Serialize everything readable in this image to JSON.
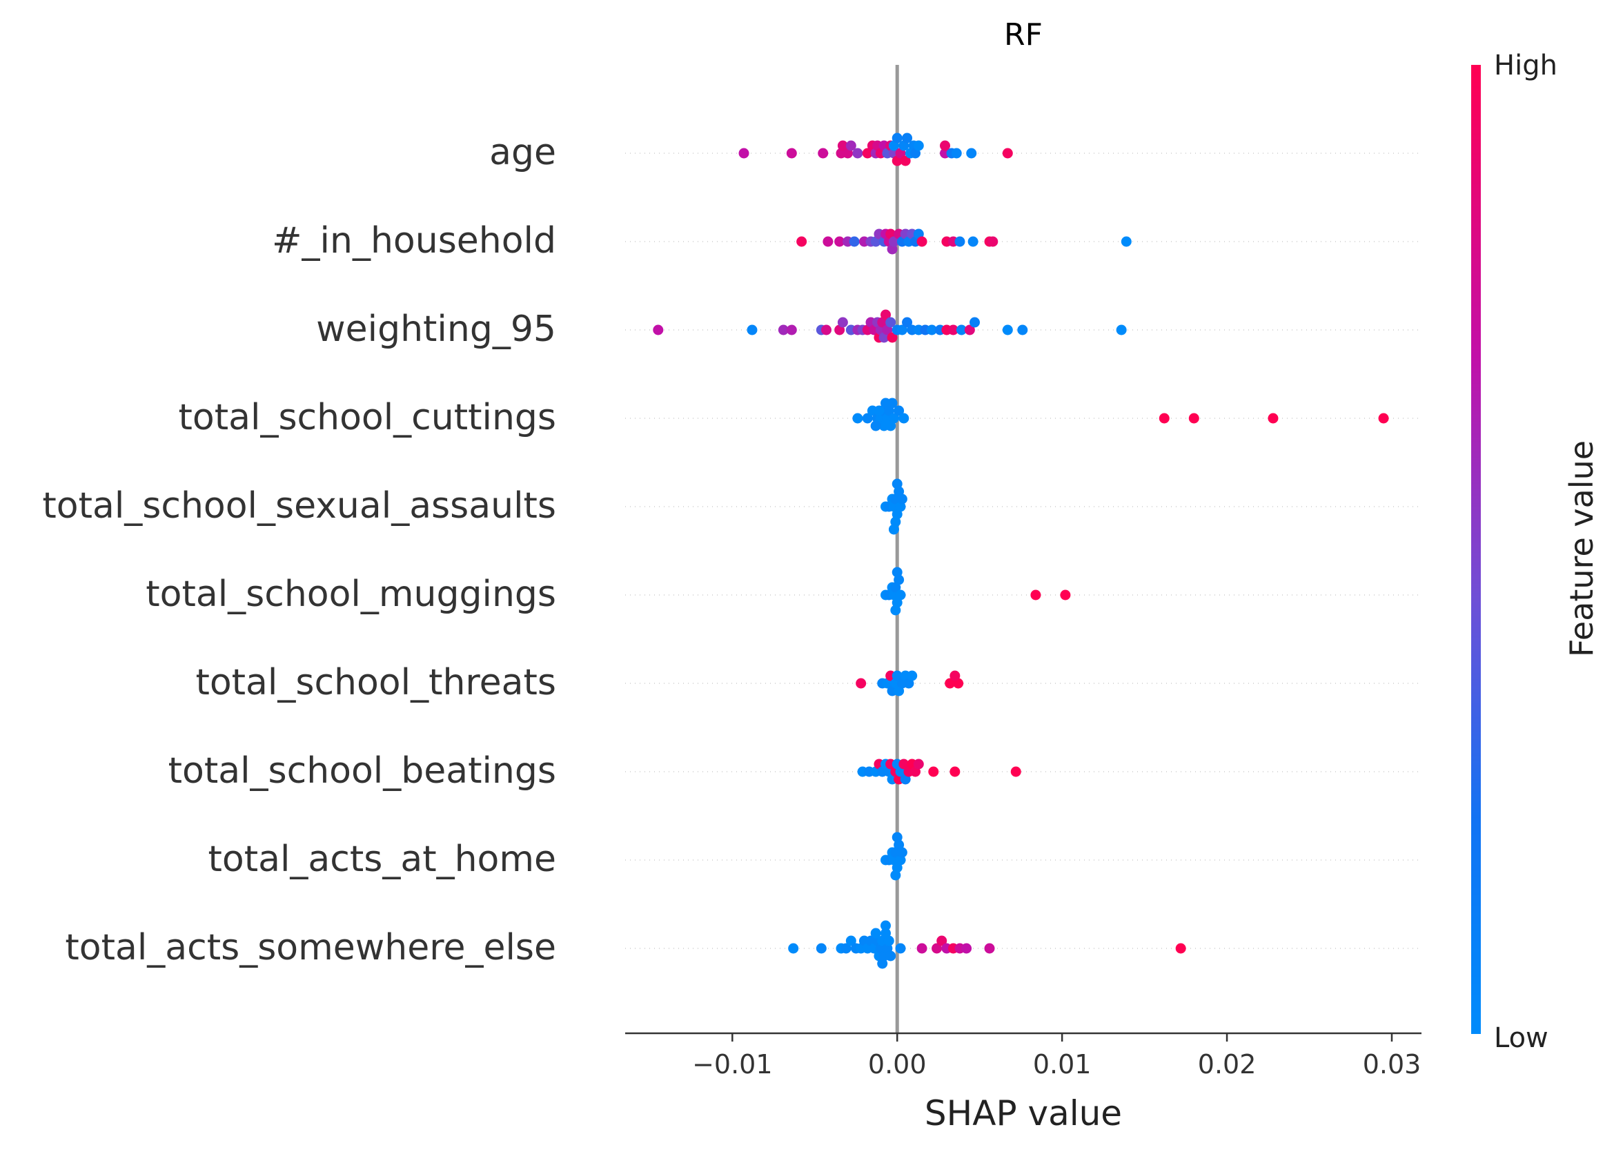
{
  "chart_data": {
    "type": "scatter",
    "title": "RF",
    "xlabel": "SHAP value",
    "ylabel": "",
    "xlim": [
      -0.0165,
      0.0318
    ],
    "x_ticks": [
      -0.01,
      0.0,
      0.01,
      0.02,
      0.03
    ],
    "x_tick_labels": [
      "−0.01",
      "0.00",
      "0.01",
      "0.02",
      "0.03"
    ],
    "grid": false,
    "zero_line": true,
    "colorbar": {
      "label": "Feature value",
      "high_label": "High",
      "low_label": "Low",
      "low_color": "#008bfb",
      "high_color": "#ff0052"
    },
    "features": [
      {
        "name": "age",
        "points": [
          {
            "x": -0.0093,
            "v": 0.7
          },
          {
            "x": -0.0064,
            "v": 0.75
          },
          {
            "x": -0.0045,
            "v": 0.75
          },
          {
            "x": -0.0034,
            "v": 0.8
          },
          {
            "x": -0.003,
            "v": 0.8
          },
          {
            "x": -0.0033,
            "v": 0.85
          },
          {
            "x": -0.0028,
            "v": 0.6
          },
          {
            "x": -0.0024,
            "v": 0.55
          },
          {
            "x": -0.0018,
            "v": 0.95
          },
          {
            "x": -0.0015,
            "v": 0.9
          },
          {
            "x": -0.0013,
            "v": 0.6
          },
          {
            "x": -0.0012,
            "v": 0.8
          },
          {
            "x": -0.001,
            "v": 0.9
          },
          {
            "x": -0.0008,
            "v": 0.7
          },
          {
            "x": -0.0006,
            "v": 0.4
          },
          {
            "x": -0.0004,
            "v": 0.85
          },
          {
            "x": -0.0002,
            "v": 0.5
          },
          {
            "x": -0.0002,
            "v": 0.0
          },
          {
            "x": 0.0,
            "v": 0.95
          },
          {
            "x": 0.0,
            "v": 0.1
          },
          {
            "x": 0.0002,
            "v": 0.8
          },
          {
            "x": 0.0004,
            "v": 0.05
          },
          {
            "x": 0.0005,
            "v": 0.95
          },
          {
            "x": 0.0006,
            "v": 0.1
          },
          {
            "x": 0.0008,
            "v": 0.0
          },
          {
            "x": 0.001,
            "v": 0.05
          },
          {
            "x": 0.0011,
            "v": 0.1
          },
          {
            "x": 0.0013,
            "v": 0.0
          },
          {
            "x": 0.0029,
            "v": 0.7
          },
          {
            "x": 0.0033,
            "v": 0.15
          },
          {
            "x": 0.0036,
            "v": 0.05
          },
          {
            "x": 0.0045,
            "v": 0.05
          },
          {
            "x": 0.0067,
            "v": 0.95
          },
          {
            "x": 0.0029,
            "v": 0.9
          }
        ]
      },
      {
        "name": "#_in_household",
        "points": [
          {
            "x": -0.0058,
            "v": 0.95
          },
          {
            "x": -0.0042,
            "v": 0.75
          },
          {
            "x": -0.0035,
            "v": 0.75
          },
          {
            "x": -0.003,
            "v": 0.6
          },
          {
            "x": -0.0026,
            "v": 0.3
          },
          {
            "x": -0.002,
            "v": 0.65
          },
          {
            "x": -0.0016,
            "v": 0.5
          },
          {
            "x": -0.0013,
            "v": 0.4
          },
          {
            "x": -0.0011,
            "v": 0.55
          },
          {
            "x": -0.0008,
            "v": 0.35
          },
          {
            "x": -0.0007,
            "v": 0.7
          },
          {
            "x": -0.0005,
            "v": 0.75
          },
          {
            "x": -0.0004,
            "v": 0.9
          },
          {
            "x": -0.0003,
            "v": 0.6
          },
          {
            "x": -0.0002,
            "v": 0.55
          },
          {
            "x": 0.0001,
            "v": 0.8
          },
          {
            "x": 0.0003,
            "v": 0.2
          },
          {
            "x": 0.0005,
            "v": 0.5
          },
          {
            "x": 0.0007,
            "v": 0.1
          },
          {
            "x": 0.0009,
            "v": 0.45
          },
          {
            "x": 0.0011,
            "v": 0.2
          },
          {
            "x": 0.0013,
            "v": 0.1
          },
          {
            "x": 0.0015,
            "v": 0.95
          },
          {
            "x": 0.003,
            "v": 0.95
          },
          {
            "x": 0.0034,
            "v": 0.85
          },
          {
            "x": 0.0038,
            "v": 0.1
          },
          {
            "x": 0.0046,
            "v": 0.05
          },
          {
            "x": 0.0056,
            "v": 0.95
          },
          {
            "x": 0.0058,
            "v": 0.9
          },
          {
            "x": 0.0139,
            "v": 0.0
          }
        ]
      },
      {
        "name": "weighting_95",
        "points": [
          {
            "x": -0.0145,
            "v": 0.7
          },
          {
            "x": -0.0088,
            "v": 0.05
          },
          {
            "x": -0.0069,
            "v": 0.6
          },
          {
            "x": -0.0064,
            "v": 0.65
          },
          {
            "x": -0.0046,
            "v": 0.4
          },
          {
            "x": -0.0043,
            "v": 0.8
          },
          {
            "x": -0.0035,
            "v": 0.85
          },
          {
            "x": -0.0033,
            "v": 0.55
          },
          {
            "x": -0.0028,
            "v": 0.4
          },
          {
            "x": -0.0024,
            "v": 0.6
          },
          {
            "x": -0.0021,
            "v": 0.5
          },
          {
            "x": -0.0018,
            "v": 0.85
          },
          {
            "x": -0.0016,
            "v": 0.65
          },
          {
            "x": -0.0014,
            "v": 0.75
          },
          {
            "x": -0.0012,
            "v": 0.55
          },
          {
            "x": -0.0011,
            "v": 0.95
          },
          {
            "x": -0.001,
            "v": 0.6
          },
          {
            "x": -0.0009,
            "v": 0.8
          },
          {
            "x": -0.0008,
            "v": 0.5
          },
          {
            "x": -0.0007,
            "v": 0.9
          },
          {
            "x": -0.0006,
            "v": 0.65
          },
          {
            "x": -0.0004,
            "v": 0.4
          },
          {
            "x": -0.0003,
            "v": 0.95
          },
          {
            "x": 0.0,
            "v": 0.1
          },
          {
            "x": 0.0003,
            "v": 0.05
          },
          {
            "x": 0.0006,
            "v": 0.15
          },
          {
            "x": 0.0009,
            "v": 0.1
          },
          {
            "x": 0.0013,
            "v": 0.05
          },
          {
            "x": 0.0017,
            "v": 0.2
          },
          {
            "x": 0.0021,
            "v": 0.05
          },
          {
            "x": 0.0026,
            "v": 0.15
          },
          {
            "x": 0.003,
            "v": 0.95
          },
          {
            "x": 0.0034,
            "v": 0.9
          },
          {
            "x": 0.0039,
            "v": 0.05
          },
          {
            "x": 0.0044,
            "v": 0.85
          },
          {
            "x": 0.0047,
            "v": 0.1
          },
          {
            "x": 0.0067,
            "v": 0.0
          },
          {
            "x": 0.0076,
            "v": 0.05
          },
          {
            "x": 0.0136,
            "v": 0.0
          }
        ]
      },
      {
        "name": "total_school_cuttings",
        "points": [
          {
            "x": -0.0024,
            "v": 0.0
          },
          {
            "x": -0.0018,
            "v": 0.05
          },
          {
            "x": -0.0015,
            "v": 0.0
          },
          {
            "x": -0.0012,
            "v": 0.05
          },
          {
            "x": -0.001,
            "v": 0.0
          },
          {
            "x": -0.0009,
            "v": 0.05
          },
          {
            "x": -0.0008,
            "v": 0.0
          },
          {
            "x": -0.0007,
            "v": 0.05
          },
          {
            "x": -0.0006,
            "v": 0.0
          },
          {
            "x": -0.0005,
            "v": 0.05
          },
          {
            "x": -0.0004,
            "v": 0.0
          },
          {
            "x": -0.0003,
            "v": 0.05
          },
          {
            "x": -0.0002,
            "v": 0.0
          },
          {
            "x": 0.0001,
            "v": 0.05
          },
          {
            "x": 0.0004,
            "v": 0.0
          },
          {
            "x": -0.0011,
            "v": 0.0
          },
          {
            "x": -0.0013,
            "v": 0.05
          },
          {
            "x": 0.0162,
            "v": 1.0
          },
          {
            "x": 0.018,
            "v": 1.0
          },
          {
            "x": 0.0228,
            "v": 1.0
          },
          {
            "x": 0.0295,
            "v": 1.0
          }
        ]
      },
      {
        "name": "total_school_sexual_assaults",
        "points": [
          {
            "x": -0.0007,
            "v": 0.0
          },
          {
            "x": -0.0005,
            "v": 0.05
          },
          {
            "x": -0.0003,
            "v": 0.0
          },
          {
            "x": -0.0002,
            "v": 0.0
          },
          {
            "x": -0.0001,
            "v": 0.05
          },
          {
            "x": 0.0,
            "v": 0.0
          },
          {
            "x": 0.0001,
            "v": 0.05
          },
          {
            "x": 0.0002,
            "v": 0.0
          },
          {
            "x": 0.0003,
            "v": 0.05
          },
          {
            "x": -0.0001,
            "v": 0.0
          },
          {
            "x": 0.0,
            "v": 0.05
          },
          {
            "x": -0.0002,
            "v": 0.0
          }
        ]
      },
      {
        "name": "total_school_muggings",
        "points": [
          {
            "x": -0.0007,
            "v": 0.0
          },
          {
            "x": -0.0005,
            "v": 0.05
          },
          {
            "x": -0.0003,
            "v": 0.0
          },
          {
            "x": -0.0002,
            "v": 0.0
          },
          {
            "x": -0.0001,
            "v": 0.05
          },
          {
            "x": 0.0,
            "v": 0.0
          },
          {
            "x": 0.0001,
            "v": 0.05
          },
          {
            "x": 0.0002,
            "v": 0.0
          },
          {
            "x": -0.0001,
            "v": 0.0
          },
          {
            "x": 0.0,
            "v": 0.05
          },
          {
            "x": 0.0084,
            "v": 1.0
          },
          {
            "x": 0.0102,
            "v": 1.0
          }
        ]
      },
      {
        "name": "total_school_threats",
        "points": [
          {
            "x": -0.0022,
            "v": 0.95
          },
          {
            "x": -0.0009,
            "v": 0.05
          },
          {
            "x": -0.0006,
            "v": 0.0
          },
          {
            "x": -0.0004,
            "v": 0.95
          },
          {
            "x": -0.0003,
            "v": 0.05
          },
          {
            "x": -0.0001,
            "v": 0.0
          },
          {
            "x": 0.0,
            "v": 0.05
          },
          {
            "x": 0.0001,
            "v": 0.0
          },
          {
            "x": 0.0003,
            "v": 0.05
          },
          {
            "x": 0.0005,
            "v": 0.0
          },
          {
            "x": 0.0007,
            "v": 0.05
          },
          {
            "x": 0.0009,
            "v": 0.0
          },
          {
            "x": 0.0032,
            "v": 1.0
          },
          {
            "x": 0.0037,
            "v": 1.0
          },
          {
            "x": 0.0035,
            "v": 0.95
          }
        ]
      },
      {
        "name": "total_school_beatings",
        "points": [
          {
            "x": -0.0021,
            "v": 0.0
          },
          {
            "x": -0.0017,
            "v": 0.05
          },
          {
            "x": -0.0013,
            "v": 0.0
          },
          {
            "x": -0.0011,
            "v": 0.95
          },
          {
            "x": -0.0009,
            "v": 0.05
          },
          {
            "x": -0.0007,
            "v": 0.0
          },
          {
            "x": -0.0005,
            "v": 0.05
          },
          {
            "x": -0.0004,
            "v": 0.95
          },
          {
            "x": -0.0003,
            "v": 0.0
          },
          {
            "x": -0.0001,
            "v": 0.95
          },
          {
            "x": 0.0,
            "v": 0.05
          },
          {
            "x": 0.0001,
            "v": 1.0
          },
          {
            "x": 0.0002,
            "v": 0.05
          },
          {
            "x": 0.0004,
            "v": 0.95
          },
          {
            "x": 0.0005,
            "v": 0.1
          },
          {
            "x": 0.0007,
            "v": 0.95
          },
          {
            "x": 0.0009,
            "v": 1.0
          },
          {
            "x": 0.0011,
            "v": 0.95
          },
          {
            "x": 0.0013,
            "v": 0.9
          },
          {
            "x": 0.0022,
            "v": 1.0
          },
          {
            "x": 0.0035,
            "v": 1.0
          },
          {
            "x": 0.0072,
            "v": 1.0
          }
        ]
      },
      {
        "name": "total_acts_at_home",
        "points": [
          {
            "x": -0.0007,
            "v": 0.0
          },
          {
            "x": -0.0005,
            "v": 0.05
          },
          {
            "x": -0.0003,
            "v": 0.0
          },
          {
            "x": -0.0002,
            "v": 0.0
          },
          {
            "x": -0.0001,
            "v": 0.05
          },
          {
            "x": 0.0,
            "v": 0.0
          },
          {
            "x": 0.0001,
            "v": 0.05
          },
          {
            "x": 0.0002,
            "v": 0.0
          },
          {
            "x": 0.0003,
            "v": 0.05
          },
          {
            "x": -0.0001,
            "v": 0.0
          },
          {
            "x": 0.0,
            "v": 0.05
          }
        ]
      },
      {
        "name": "total_acts_somewhere_else",
        "points": [
          {
            "x": -0.0063,
            "v": 0.0
          },
          {
            "x": -0.0046,
            "v": 0.05
          },
          {
            "x": -0.0034,
            "v": 0.0
          },
          {
            "x": -0.0031,
            "v": 0.05
          },
          {
            "x": -0.0028,
            "v": 0.0
          },
          {
            "x": -0.0025,
            "v": 0.05
          },
          {
            "x": -0.0022,
            "v": 0.0
          },
          {
            "x": -0.002,
            "v": 0.05
          },
          {
            "x": -0.0018,
            "v": 0.0
          },
          {
            "x": -0.0016,
            "v": 0.05
          },
          {
            "x": -0.0014,
            "v": 0.0
          },
          {
            "x": -0.0012,
            "v": 0.05
          },
          {
            "x": -0.0011,
            "v": 0.0
          },
          {
            "x": -0.001,
            "v": 0.05
          },
          {
            "x": -0.0009,
            "v": 0.0
          },
          {
            "x": -0.0008,
            "v": 0.05
          },
          {
            "x": -0.0007,
            "v": 0.0
          },
          {
            "x": -0.0006,
            "v": 0.05
          },
          {
            "x": -0.0005,
            "v": 0.0
          },
          {
            "x": -0.0004,
            "v": 0.05
          },
          {
            "x": -0.0013,
            "v": 0.0
          },
          {
            "x": -0.0009,
            "v": 0.05
          },
          {
            "x": -0.0007,
            "v": 0.0
          },
          {
            "x": 0.0002,
            "v": 0.05
          },
          {
            "x": 0.0015,
            "v": 0.75
          },
          {
            "x": 0.0024,
            "v": 0.8
          },
          {
            "x": 0.0027,
            "v": 0.9
          },
          {
            "x": 0.003,
            "v": 0.7
          },
          {
            "x": 0.0034,
            "v": 0.95
          },
          {
            "x": 0.0038,
            "v": 0.75
          },
          {
            "x": 0.0042,
            "v": 0.7
          },
          {
            "x": 0.0056,
            "v": 0.75
          },
          {
            "x": 0.0172,
            "v": 1.0
          }
        ]
      }
    ]
  }
}
